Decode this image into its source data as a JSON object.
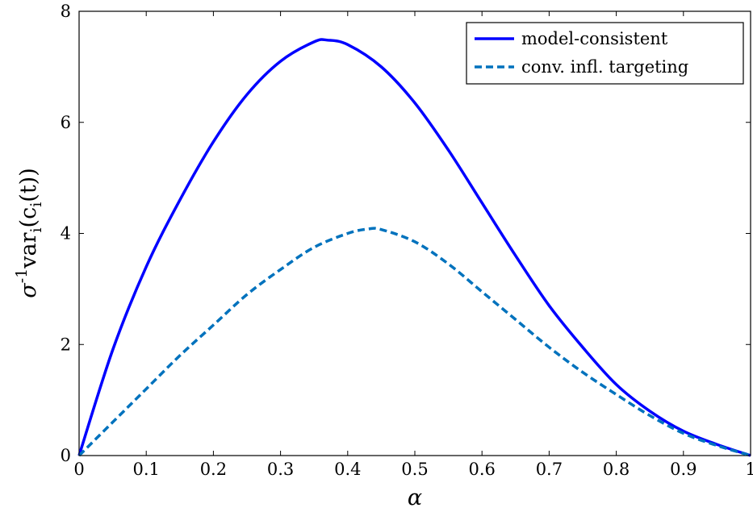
{
  "chart_data": {
    "type": "line",
    "title": "",
    "xlabel": "α",
    "ylabel": "σ-1vari(ci(t))",
    "ylabel_parts": {
      "sigma": "σ",
      "sup": "-1",
      "var": "var",
      "sub_i1": "i",
      "open": "(c",
      "sub_i2": "i",
      "close": "(t))"
    },
    "xlim": [
      0,
      1
    ],
    "ylim": [
      0,
      8
    ],
    "xticks": [
      0,
      0.1,
      0.2,
      0.3,
      0.4,
      0.5,
      0.6,
      0.7,
      0.8,
      0.9,
      1
    ],
    "xtick_labels": [
      "0",
      "0.1",
      "0.2",
      "0.3",
      "0.4",
      "0.5",
      "0.6",
      "0.7",
      "0.8",
      "0.9",
      "1"
    ],
    "yticks": [
      0,
      2,
      4,
      6,
      8
    ],
    "ytick_labels": [
      "0",
      "2",
      "4",
      "6",
      "8"
    ],
    "grid": false,
    "legend_position": "top-right",
    "series": [
      {
        "name": "model-consistent",
        "color": "#0000ff",
        "dash": "solid",
        "x": [
          0,
          0.05,
          0.1,
          0.15,
          0.2,
          0.25,
          0.3,
          0.35,
          0.37,
          0.4,
          0.45,
          0.5,
          0.55,
          0.6,
          0.65,
          0.7,
          0.75,
          0.8,
          0.85,
          0.9,
          0.95,
          1
        ],
        "y": [
          0,
          1.9,
          3.4,
          4.6,
          5.65,
          6.5,
          7.1,
          7.45,
          7.48,
          7.4,
          7.0,
          6.35,
          5.5,
          4.55,
          3.6,
          2.7,
          1.95,
          1.28,
          0.8,
          0.44,
          0.2,
          0
        ]
      },
      {
        "name": "conv. infl. targeting",
        "color": "#0072bd",
        "dash": "dashed",
        "x": [
          0,
          0.05,
          0.1,
          0.15,
          0.2,
          0.25,
          0.3,
          0.35,
          0.4,
          0.43,
          0.45,
          0.5,
          0.55,
          0.6,
          0.65,
          0.7,
          0.75,
          0.8,
          0.85,
          0.9,
          0.95,
          1
        ],
        "y": [
          0,
          0.6,
          1.2,
          1.8,
          2.35,
          2.9,
          3.35,
          3.75,
          4.0,
          4.08,
          4.07,
          3.85,
          3.45,
          2.95,
          2.45,
          1.95,
          1.5,
          1.1,
          0.72,
          0.4,
          0.18,
          0
        ]
      }
    ]
  }
}
